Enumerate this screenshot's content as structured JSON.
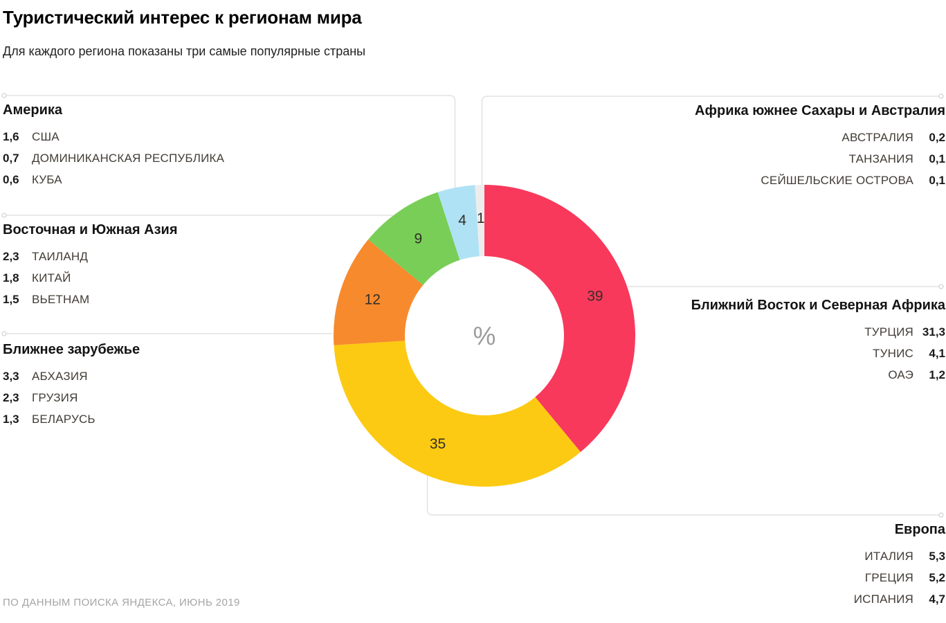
{
  "header": {
    "title": "Туристический интерес к регионам мира",
    "subtitle": "Для каждого региона показаны три самые популярные страны"
  },
  "left_sections": [
    {
      "title": "Америка",
      "rows": [
        {
          "value": "1,6",
          "country": "США"
        },
        {
          "value": "0,7",
          "country": "ДОМИНИКАНСКАЯ РЕСПУБЛИКА"
        },
        {
          "value": "0,6",
          "country": "КУБА"
        }
      ]
    },
    {
      "title": "Восточная и Южная Азия",
      "rows": [
        {
          "value": "2,3",
          "country": "ТАИЛАНД"
        },
        {
          "value": "1,8",
          "country": "КИТАЙ"
        },
        {
          "value": "1,5",
          "country": "ВЬЕТНАМ"
        }
      ]
    },
    {
      "title": "Ближнее зарубежье",
      "rows": [
        {
          "value": "3,3",
          "country": "АБХАЗИЯ"
        },
        {
          "value": "2,3",
          "country": "ГРУЗИЯ"
        },
        {
          "value": "1,3",
          "country": "БЕЛАРУСЬ"
        }
      ]
    }
  ],
  "right_sections": [
    {
      "title": "Африка южнее Сахары и Австралия",
      "rows": [
        {
          "country": "АВСТРАЛИЯ",
          "value": "0,2"
        },
        {
          "country": "ТАНЗАНИЯ",
          "value": "0,1"
        },
        {
          "country": "СЕЙШЕЛЬСКИЕ ОСТРОВА",
          "value": "0,1"
        }
      ]
    },
    {
      "title": "Ближний Восток и Северная Африка",
      "rows": [
        {
          "country": "ТУРЦИЯ",
          "value": "31,3"
        },
        {
          "country": "ТУНИС",
          "value": "4,1"
        },
        {
          "country": "ОАЭ",
          "value": "1,2"
        }
      ]
    },
    {
      "title": "Европа",
      "rows": [
        {
          "country": "ИТАЛИЯ",
          "value": "5,3"
        },
        {
          "country": "ГРЕЦИЯ",
          "value": "5,2"
        },
        {
          "country": "ИСПАНИЯ",
          "value": "4,7"
        }
      ]
    }
  ],
  "footer": {
    "source": "ПО ДАННЫМ ПОИСКА ЯНДЕКСА, ИЮНЬ 2019"
  },
  "chart_data": {
    "type": "pie",
    "subtype": "donut",
    "title": "Туристический интерес к регионам мира",
    "subtitle": "Для каждого региона показаны три самые популярные страны",
    "unit": "%",
    "center_label": "%",
    "start_angle": "top",
    "direction": "clockwise",
    "segments": [
      {
        "region": "Ближний Восток и Северная Африка",
        "value": 39,
        "color": "#f8395c"
      },
      {
        "region": "Европа",
        "value": 35,
        "color": "#fcca12"
      },
      {
        "region": "Ближнее зарубежье",
        "value": 12,
        "color": "#f78a2d"
      },
      {
        "region": "Восточная и Южная Азия",
        "value": 9,
        "color": "#79ce58"
      },
      {
        "region": "Америка",
        "value": 4,
        "color": "#afe2f4"
      },
      {
        "region": "Африка южнее Сахары и Австралия",
        "value": 1,
        "color": "#ededed"
      }
    ],
    "top_countries_by_region": [
      {
        "region": "Америка",
        "countries": [
          {
            "name": "США",
            "value": 1.6
          },
          {
            "name": "Доминиканская Республика",
            "value": 0.7
          },
          {
            "name": "Куба",
            "value": 0.6
          }
        ]
      },
      {
        "region": "Восточная и Южная Азия",
        "countries": [
          {
            "name": "Таиланд",
            "value": 2.3
          },
          {
            "name": "Китай",
            "value": 1.8
          },
          {
            "name": "Вьетнам",
            "value": 1.5
          }
        ]
      },
      {
        "region": "Ближнее зарубежье",
        "countries": [
          {
            "name": "Абхазия",
            "value": 3.3
          },
          {
            "name": "Грузия",
            "value": 2.3
          },
          {
            "name": "Беларусь",
            "value": 1.3
          }
        ]
      },
      {
        "region": "Африка южнее Сахары и Австралия",
        "countries": [
          {
            "name": "Австралия",
            "value": 0.2
          },
          {
            "name": "Танзания",
            "value": 0.1
          },
          {
            "name": "Сейшельские острова",
            "value": 0.1
          }
        ]
      },
      {
        "region": "Ближний Восток и Северная Африка",
        "countries": [
          {
            "name": "Турция",
            "value": 31.3
          },
          {
            "name": "Тунис",
            "value": 4.1
          },
          {
            "name": "ОАЭ",
            "value": 1.2
          }
        ]
      },
      {
        "region": "Европа",
        "countries": [
          {
            "name": "Италия",
            "value": 5.3
          },
          {
            "name": "Греция",
            "value": 5.2
          },
          {
            "name": "Испания",
            "value": 4.7
          }
        ]
      }
    ],
    "colors": {
      "callout_line": "#d6d6d6",
      "segment_label_text": "#332e28",
      "center_label_text": "#9c9c9c"
    }
  }
}
